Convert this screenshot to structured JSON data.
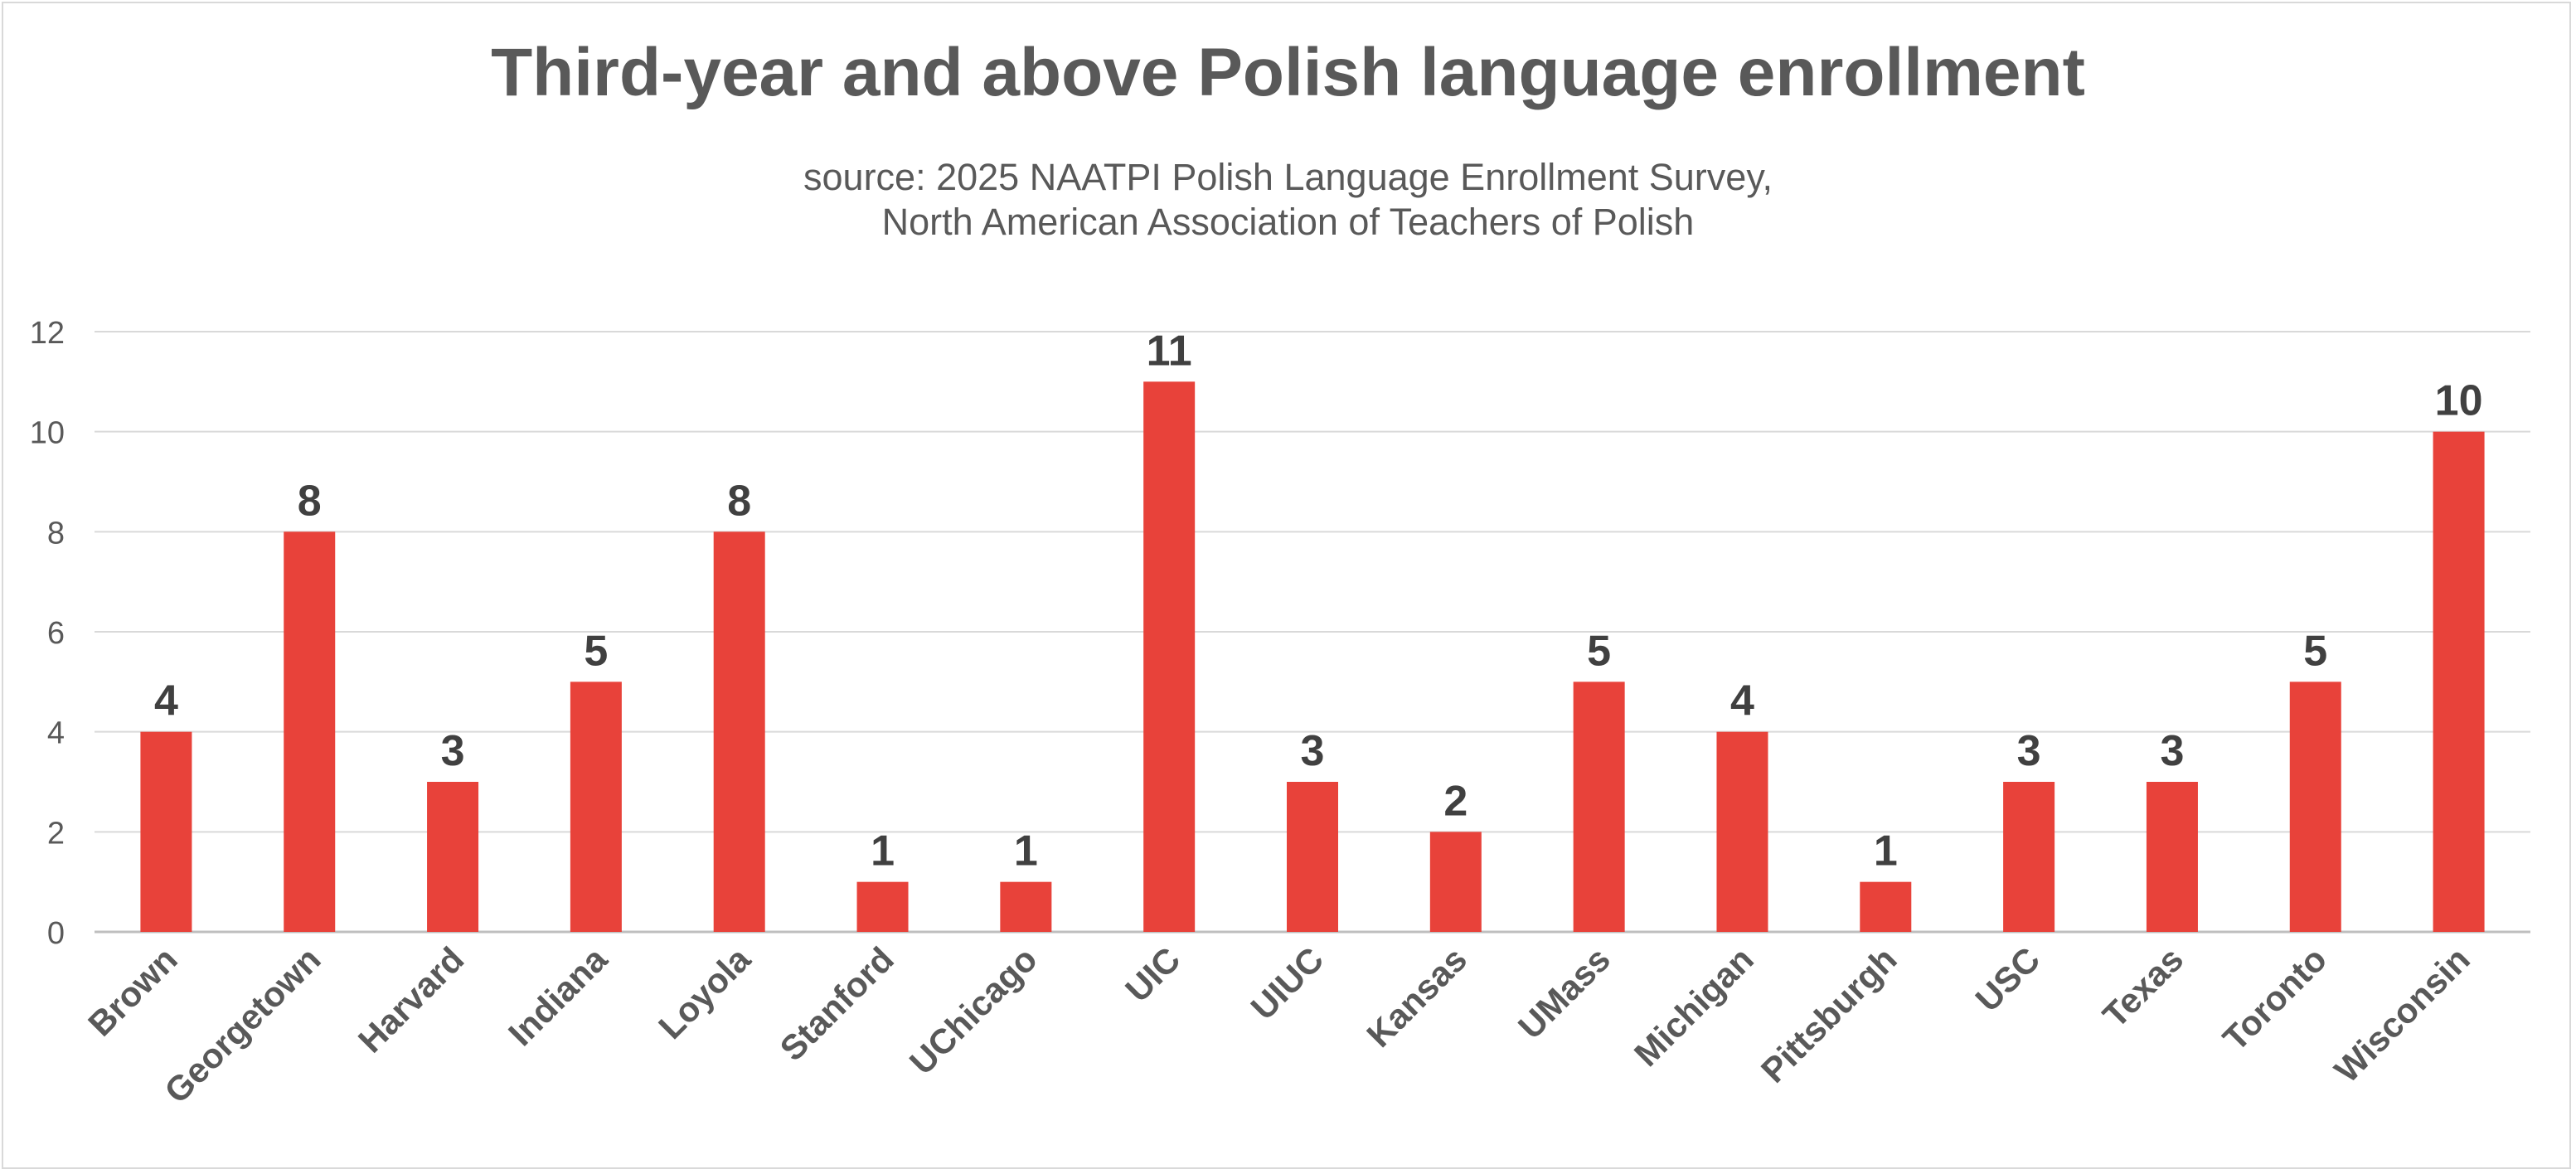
{
  "chart_data": {
    "type": "bar",
    "title": "Third-year and above Polish language enrollment",
    "subtitle_lines": [
      "source: 2025 NAATPI Polish Language Enrollment Survey,",
      "North American Association of Teachers of Polish"
    ],
    "categories": [
      "Brown",
      "Georgetown",
      "Harvard",
      "Indiana",
      "Loyola",
      "Stanford",
      "UChicago",
      "UIC",
      "UIUC",
      "Kansas",
      "UMass",
      "Michigan",
      "Pittsburgh",
      "USC",
      "Texas",
      "Toronto",
      "Wisconsin"
    ],
    "values": [
      4,
      8,
      3,
      5,
      8,
      1,
      1,
      11,
      3,
      2,
      5,
      4,
      1,
      3,
      3,
      5,
      10
    ],
    "xlabel": "",
    "ylabel": "",
    "ylim": [
      0,
      12
    ],
    "yticks": [
      "0",
      "2",
      "4",
      "6",
      "8",
      "10",
      "12"
    ],
    "grid": true,
    "legend": "none",
    "bar_color": "#E8423A",
    "data_labels": true
  }
}
